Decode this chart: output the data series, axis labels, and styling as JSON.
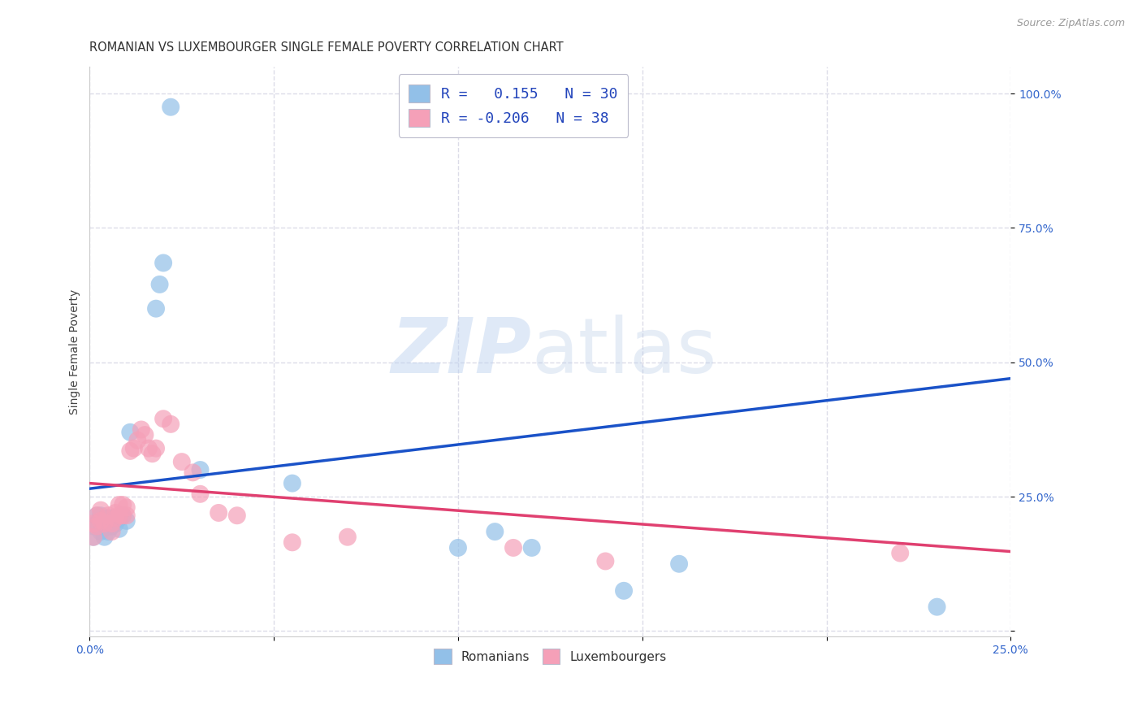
{
  "title": "ROMANIAN VS LUXEMBOURGER SINGLE FEMALE POVERTY CORRELATION CHART",
  "source": "Source: ZipAtlas.com",
  "ylabel": "Single Female Poverty",
  "xlim": [
    0.0,
    0.25
  ],
  "ylim": [
    -0.01,
    1.05
  ],
  "romanian_color": "#92C0E8",
  "luxembourger_color": "#F5A0B8",
  "romanian_line_color": "#1A52C8",
  "luxembourger_line_color": "#E04070",
  "R_romanian": 0.155,
  "N_romanian": 30,
  "R_luxembourger": -0.206,
  "N_luxembourger": 38,
  "rom_line_x0": 0.0,
  "rom_line_y0": 0.265,
  "rom_line_x1": 0.25,
  "rom_line_y1": 0.47,
  "lux_line_x0": 0.0,
  "lux_line_y0": 0.275,
  "lux_line_x1": 0.25,
  "lux_line_y1": 0.148,
  "romanians_x": [
    0.001,
    0.001,
    0.002,
    0.002,
    0.003,
    0.003,
    0.004,
    0.004,
    0.005,
    0.005,
    0.006,
    0.006,
    0.007,
    0.008,
    0.008,
    0.009,
    0.01,
    0.011,
    0.018,
    0.019,
    0.02,
    0.022,
    0.03,
    0.055,
    0.1,
    0.11,
    0.12,
    0.145,
    0.16,
    0.23
  ],
  "romanians_y": [
    0.175,
    0.195,
    0.2,
    0.215,
    0.185,
    0.215,
    0.175,
    0.205,
    0.185,
    0.21,
    0.195,
    0.21,
    0.2,
    0.19,
    0.21,
    0.215,
    0.205,
    0.37,
    0.6,
    0.645,
    0.685,
    0.975,
    0.3,
    0.275,
    0.155,
    0.185,
    0.155,
    0.075,
    0.125,
    0.045
  ],
  "luxembourgers_x": [
    0.001,
    0.001,
    0.002,
    0.002,
    0.003,
    0.003,
    0.004,
    0.005,
    0.006,
    0.006,
    0.007,
    0.007,
    0.008,
    0.008,
    0.009,
    0.009,
    0.01,
    0.01,
    0.011,
    0.012,
    0.013,
    0.014,
    0.015,
    0.016,
    0.017,
    0.018,
    0.02,
    0.022,
    0.025,
    0.028,
    0.03,
    0.035,
    0.04,
    0.055,
    0.07,
    0.115,
    0.14,
    0.22
  ],
  "luxembourgers_y": [
    0.175,
    0.2,
    0.195,
    0.215,
    0.205,
    0.225,
    0.2,
    0.215,
    0.185,
    0.2,
    0.21,
    0.22,
    0.215,
    0.235,
    0.215,
    0.235,
    0.215,
    0.23,
    0.335,
    0.34,
    0.355,
    0.375,
    0.365,
    0.34,
    0.33,
    0.34,
    0.395,
    0.385,
    0.315,
    0.295,
    0.255,
    0.22,
    0.215,
    0.165,
    0.175,
    0.155,
    0.13,
    0.145
  ],
  "background_color": "#FFFFFF",
  "grid_color": "#DCDCE8",
  "title_fontsize": 10.5,
  "tick_fontsize": 10,
  "legend_fontsize": 13
}
